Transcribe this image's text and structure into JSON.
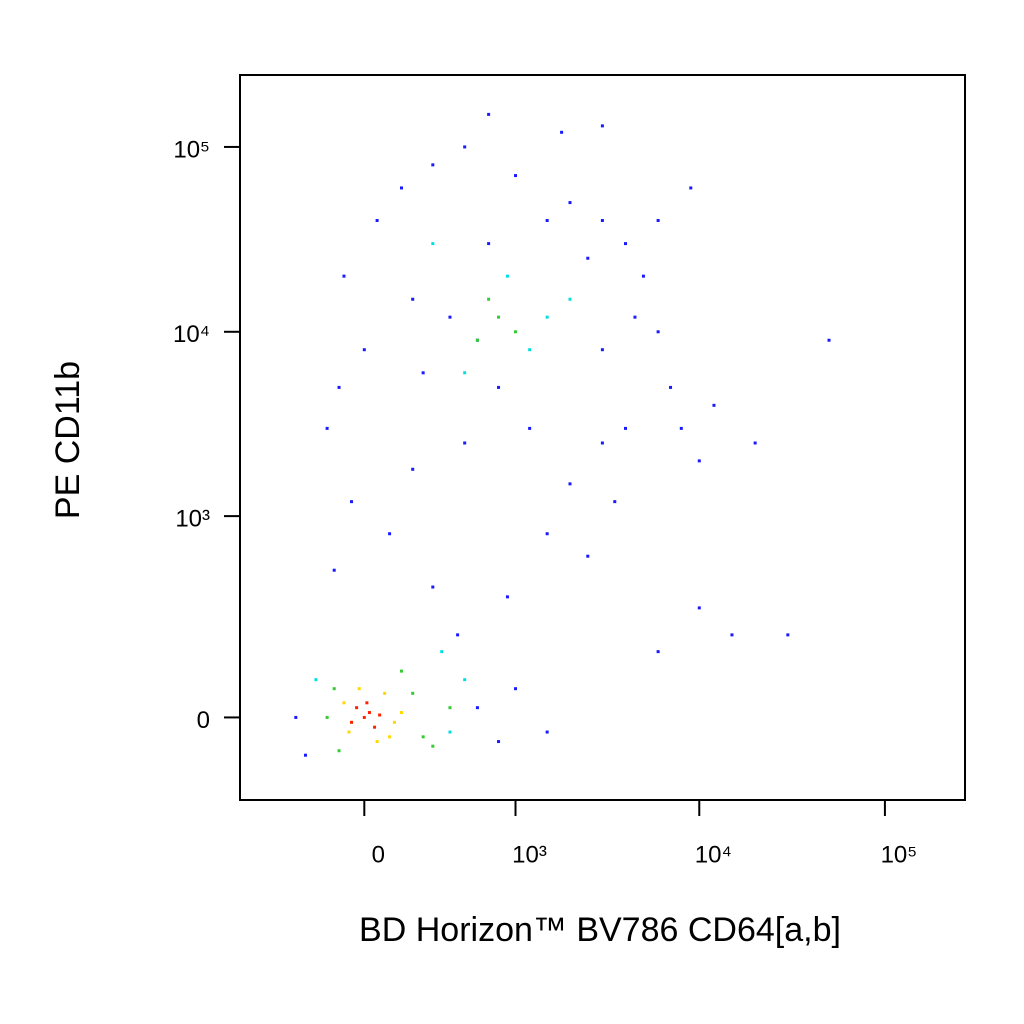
{
  "chart_data": {
    "type": "scatter",
    "xlabel": "BD Horizon™ BV786 CD64[a,b]",
    "ylabel": "PE CD11b",
    "xscale": "biexponential",
    "yscale": "biexponential",
    "xlim": [
      -700,
      270000
    ],
    "ylim": [
      -200,
      245000
    ],
    "xticks": [
      0,
      {
        "value": 1000,
        "label": "10³"
      },
      {
        "value": 10000,
        "label": "10⁴"
      },
      {
        "value": 100000,
        "label": "10⁵"
      }
    ],
    "yticks": [
      0,
      {
        "value": 1000,
        "label": "10³"
      },
      {
        "value": 10000,
        "label": "10⁴"
      },
      {
        "value": 100000,
        "label": "10⁵"
      }
    ],
    "series": [
      {
        "color": "#1a1aff",
        "x": [
          -300,
          -250,
          600,
          800,
          1000,
          450,
          300,
          100,
          -50,
          200,
          500,
          1500,
          2000,
          3000,
          4000,
          2500,
          3500,
          -100,
          -80,
          0,
          50,
          150,
          300,
          500,
          1000,
          2000,
          3000,
          4000,
          5000,
          6000,
          7000,
          8000,
          10000,
          12000,
          20000,
          50000,
          700,
          1500,
          2500,
          800,
          400,
          200,
          1200,
          3000,
          4500,
          6000,
          9000,
          1800,
          700,
          3000,
          -150,
          -120,
          900,
          1500,
          30000,
          15000,
          10000,
          6000,
          250,
          600
        ],
        "y": [
          0,
          -80,
          20,
          -50,
          60,
          200,
          400,
          800,
          1200,
          1800,
          2500,
          800,
          1500,
          2500,
          3000,
          600,
          1200,
          5000,
          20000,
          8000,
          40000,
          60000,
          80000,
          100000,
          70000,
          50000,
          40000,
          30000,
          20000,
          10000,
          5000,
          3000,
          2000,
          4000,
          2500,
          9000,
          30000,
          40000,
          25000,
          5000,
          12000,
          15000,
          3000,
          8000,
          12000,
          40000,
          60000,
          120000,
          150000,
          130000,
          3000,
          500,
          350,
          -30,
          200,
          200,
          300,
          150,
          6000,
          9000
        ]
      },
      {
        "color": "#00e0e0",
        "x": [
          -200,
          400,
          500,
          350,
          1500,
          900,
          1200,
          2000,
          500,
          300
        ],
        "y": [
          80,
          -30,
          80,
          150,
          12000,
          20000,
          8000,
          15000,
          6000,
          30000
        ]
      },
      {
        "color": "#33cc33",
        "x": [
          -150,
          200,
          300,
          -120,
          250,
          150,
          -100,
          400,
          800,
          600,
          700,
          1000
        ],
        "y": [
          0,
          50,
          -60,
          60,
          -40,
          100,
          -70,
          20,
          12000,
          9000,
          15000,
          10000
        ]
      },
      {
        "color": "#ffd800",
        "x": [
          -80,
          100,
          150,
          -60,
          80,
          -20,
          50,
          120
        ],
        "y": [
          30,
          -40,
          10,
          -30,
          50,
          60,
          -50,
          -10
        ]
      },
      {
        "color": "#ff2200",
        "x": [
          0,
          -30,
          40,
          20,
          -50,
          60,
          10
        ],
        "y": [
          0,
          20,
          -20,
          10,
          -10,
          5,
          30
        ]
      }
    ]
  }
}
